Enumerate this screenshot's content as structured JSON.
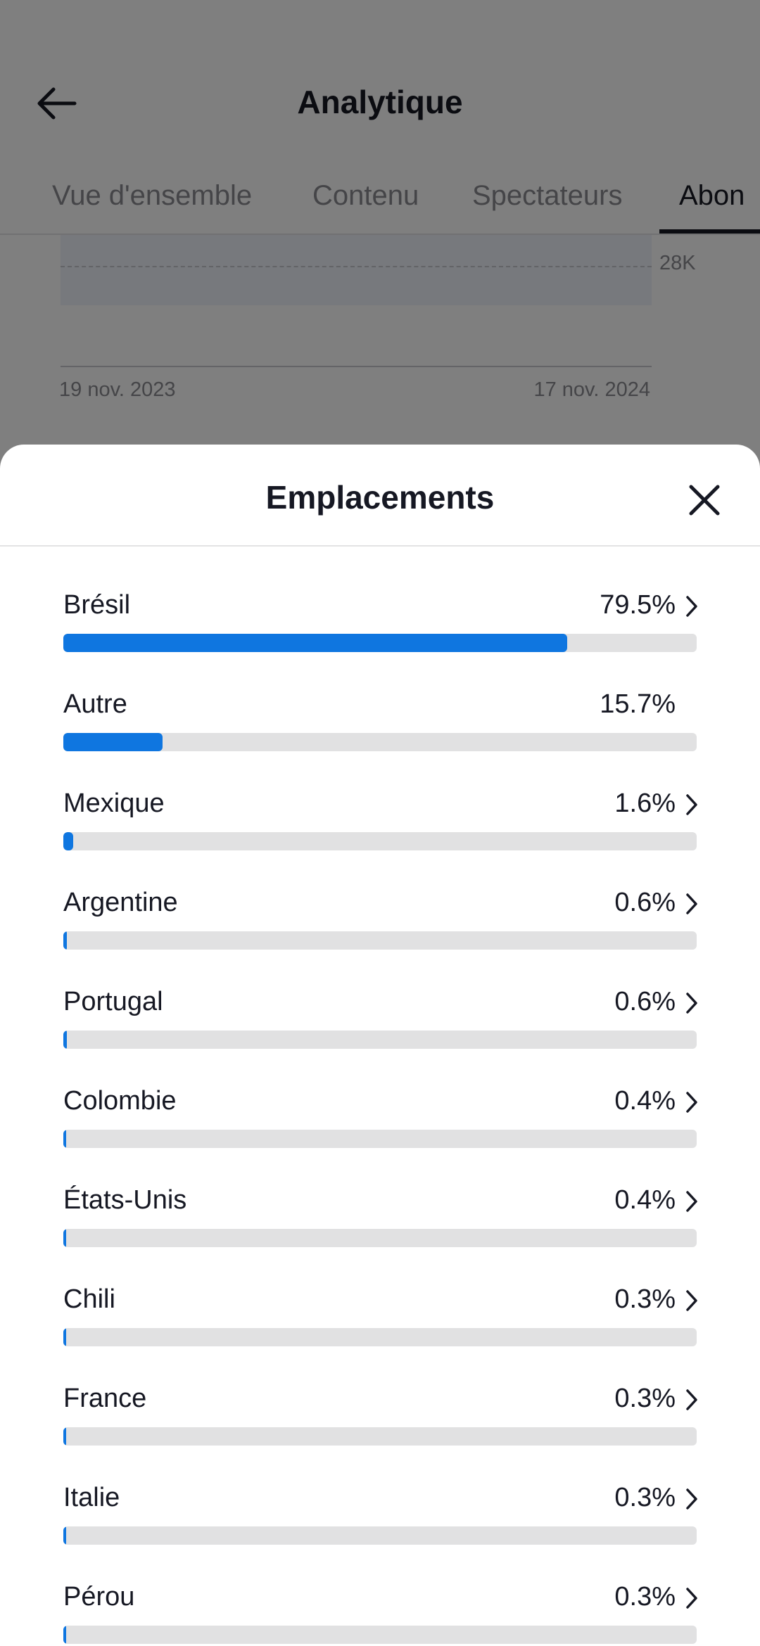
{
  "header": {
    "title": "Analytique",
    "tabs": [
      {
        "label": "Vue d'ensemble",
        "active": false
      },
      {
        "label": "Contenu",
        "active": false
      },
      {
        "label": "Spectateurs",
        "active": false
      },
      {
        "label": "Abon",
        "active": true
      }
    ]
  },
  "background_chart": {
    "tick_label": "28K",
    "start_date": "19 nov. 2023",
    "end_date": "17 nov. 2024"
  },
  "sheet": {
    "title": "Emplacements",
    "items": [
      {
        "name": "Brésil",
        "percent_label": "79.5%",
        "value": 79.5,
        "chevron": true
      },
      {
        "name": "Autre",
        "percent_label": "15.7%",
        "value": 15.7,
        "chevron": false
      },
      {
        "name": "Mexique",
        "percent_label": "1.6%",
        "value": 1.6,
        "chevron": true
      },
      {
        "name": "Argentine",
        "percent_label": "0.6%",
        "value": 0.6,
        "chevron": true
      },
      {
        "name": "Portugal",
        "percent_label": "0.6%",
        "value": 0.6,
        "chevron": true
      },
      {
        "name": "Colombie",
        "percent_label": "0.4%",
        "value": 0.4,
        "chevron": true
      },
      {
        "name": "États-Unis",
        "percent_label": "0.4%",
        "value": 0.4,
        "chevron": true
      },
      {
        "name": "Chili",
        "percent_label": "0.3%",
        "value": 0.3,
        "chevron": true
      },
      {
        "name": "France",
        "percent_label": "0.3%",
        "value": 0.3,
        "chevron": true
      },
      {
        "name": "Italie",
        "percent_label": "0.3%",
        "value": 0.3,
        "chevron": true
      },
      {
        "name": "Pérou",
        "percent_label": "0.3%",
        "value": 0.3,
        "chevron": true
      }
    ]
  },
  "colors": {
    "bar_fill": "#0f76e0",
    "bar_track": "#e1e1e2",
    "text_primary": "#161823",
    "text_secondary": "#8a8b91"
  },
  "icons": {
    "back": "arrow-left-icon",
    "close": "close-icon",
    "row_chevron": "chevron-right-icon"
  }
}
